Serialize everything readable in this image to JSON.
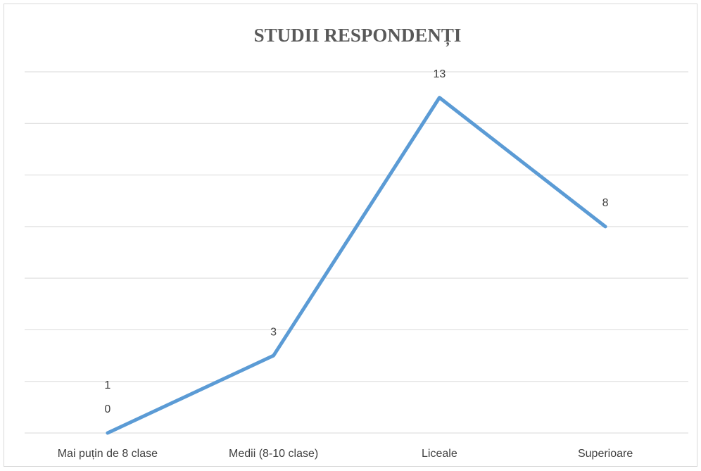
{
  "chart_data": {
    "type": "line",
    "title": "STUDII RESPONDENȚI",
    "categories": [
      "Mai puțin de 8 clase",
      "Medii (8-10 clase)",
      "Liceale",
      "Superioare"
    ],
    "values": [
      0,
      3,
      13,
      8
    ],
    "color": "#5b9bd5",
    "annotations": [
      "1"
    ],
    "ylim": [
      0,
      14
    ],
    "yticks": [
      0,
      2,
      4,
      6,
      8,
      10,
      12,
      14
    ],
    "grid": true
  }
}
